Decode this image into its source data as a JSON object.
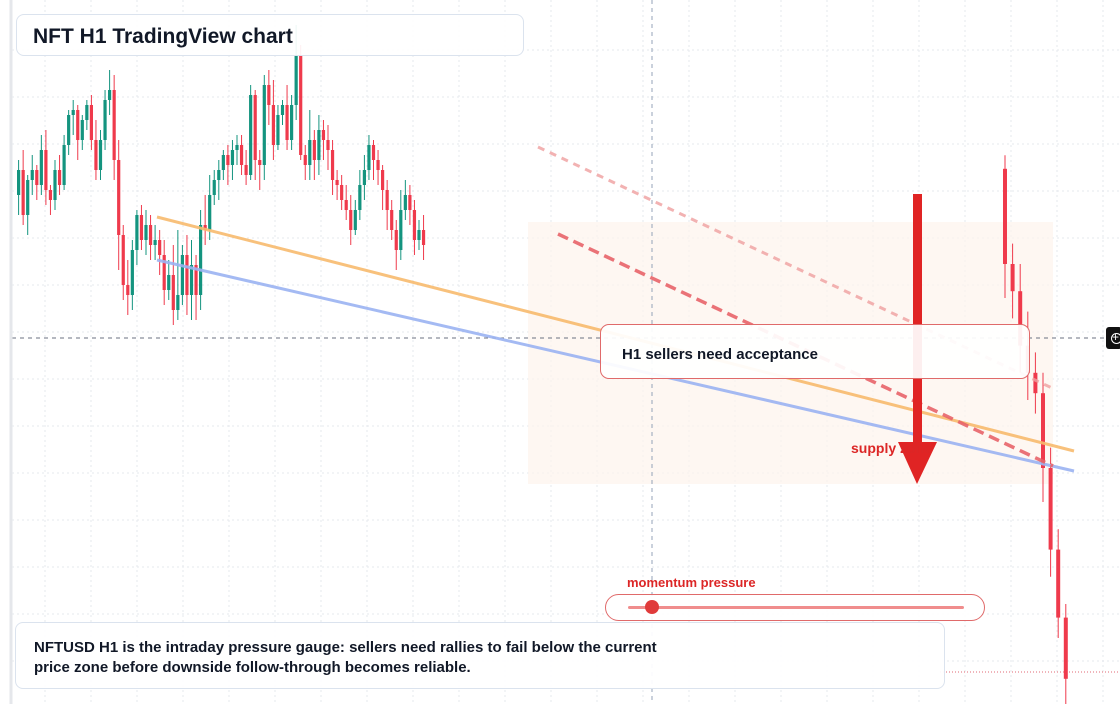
{
  "header": {
    "title": "NFT H1 TradingView chart"
  },
  "annotation": {
    "note": "H1 sellers need acceptance",
    "zone_label": "supply zone"
  },
  "gauge": {
    "label": "momentum pressure",
    "level": 0.07
  },
  "caption": "NFTUSD H1 is the intraday pressure gauge: sellers need rallies to fail below the current price zone before downside follow-through becomes reliable.",
  "colors": {
    "bull": "#14947f",
    "bear": "#ef3a4c",
    "accent": "#dc2626",
    "trend_orange": "#f8bb6e",
    "trend_blue": "#9bb3f2"
  },
  "chart_data": {
    "type": "candlestick",
    "timeframe": "H1",
    "symbol": "NFTUSD",
    "y_direction": "price rises upward; values in relative units 0-100",
    "candles": [
      [
        55,
        60,
        51,
        62
      ],
      [
        60,
        51,
        49,
        64
      ],
      [
        51,
        58,
        47,
        59
      ],
      [
        58,
        60,
        55,
        63
      ],
      [
        60,
        57,
        54,
        61
      ],
      [
        57,
        64,
        55,
        67
      ],
      [
        64,
        56,
        53,
        68
      ],
      [
        56,
        54,
        51,
        57
      ],
      [
        54,
        60,
        52,
        62
      ],
      [
        60,
        57,
        55,
        63
      ],
      [
        57,
        65,
        56,
        67
      ],
      [
        65,
        71,
        63,
        72
      ],
      [
        71,
        72,
        67,
        74
      ],
      [
        72,
        66,
        62,
        73
      ],
      [
        66,
        70,
        64,
        71
      ],
      [
        70,
        73,
        68,
        74
      ],
      [
        73,
        66,
        64,
        75
      ],
      [
        66,
        60,
        58,
        70
      ],
      [
        60,
        66,
        58,
        68
      ],
      [
        66,
        74,
        64,
        76
      ],
      [
        74,
        76,
        71,
        80
      ],
      [
        76,
        62,
        58,
        79
      ],
      [
        62,
        47,
        40,
        66
      ],
      [
        47,
        37,
        34,
        49
      ],
      [
        37,
        35,
        31,
        42
      ],
      [
        35,
        44,
        32,
        46
      ],
      [
        44,
        51,
        41,
        52
      ],
      [
        51,
        46,
        44,
        53
      ],
      [
        46,
        49,
        43,
        52
      ],
      [
        49,
        45,
        42,
        51
      ],
      [
        45,
        46,
        42,
        49
      ],
      [
        46,
        43,
        39,
        48
      ],
      [
        43,
        36,
        33,
        46
      ],
      [
        36,
        39,
        34,
        42
      ],
      [
        39,
        32,
        29,
        45
      ],
      [
        32,
        35,
        30,
        48
      ],
      [
        35,
        43,
        33,
        45
      ],
      [
        43,
        35,
        31,
        47
      ],
      [
        35,
        41,
        30,
        46
      ],
      [
        41,
        35,
        30,
        43
      ],
      [
        35,
        49,
        32,
        52
      ],
      [
        49,
        48,
        45,
        55
      ],
      [
        48,
        55,
        46,
        59
      ],
      [
        55,
        58,
        53,
        60
      ],
      [
        58,
        60,
        54,
        62
      ],
      [
        60,
        63,
        58,
        64
      ],
      [
        63,
        61,
        57,
        65
      ],
      [
        61,
        64,
        58,
        66
      ],
      [
        64,
        65,
        61,
        67
      ],
      [
        65,
        61,
        59,
        67
      ],
      [
        61,
        59,
        57,
        64
      ],
      [
        59,
        75,
        58,
        77
      ],
      [
        75,
        62,
        58,
        76
      ],
      [
        62,
        61,
        56,
        64
      ],
      [
        61,
        77,
        58,
        79
      ],
      [
        77,
        73,
        69,
        80
      ],
      [
        73,
        65,
        62,
        78
      ],
      [
        65,
        71,
        64,
        73
      ],
      [
        71,
        73,
        69,
        74
      ],
      [
        73,
        66,
        64,
        77
      ],
      [
        66,
        73,
        64,
        75
      ],
      [
        73,
        83,
        70,
        89
      ],
      [
        83,
        63,
        62,
        85
      ],
      [
        63,
        61,
        58,
        65
      ],
      [
        61,
        66,
        58,
        72
      ],
      [
        66,
        62,
        58,
        68
      ],
      [
        62,
        68,
        59,
        71
      ],
      [
        68,
        66,
        62,
        70
      ],
      [
        66,
        64,
        60,
        69
      ],
      [
        64,
        58,
        55,
        66
      ],
      [
        58,
        57,
        54,
        60
      ],
      [
        57,
        54,
        52,
        59
      ],
      [
        54,
        52,
        50,
        57
      ],
      [
        52,
        48,
        45,
        55
      ],
      [
        48,
        52,
        47,
        54
      ],
      [
        52,
        57,
        50,
        60
      ],
      [
        57,
        60,
        54,
        63
      ],
      [
        60,
        65,
        58,
        67
      ],
      [
        65,
        62,
        58,
        66
      ],
      [
        62,
        60,
        57,
        64
      ],
      [
        60,
        56,
        52,
        61
      ],
      [
        56,
        52,
        48,
        58
      ],
      [
        52,
        48,
        46,
        54
      ],
      [
        48,
        44,
        40,
        50
      ],
      [
        44,
        52,
        42,
        56
      ],
      [
        52,
        55,
        50,
        58
      ],
      [
        55,
        52,
        49,
        57
      ],
      [
        52,
        46,
        43,
        54
      ],
      [
        46,
        48,
        44,
        50
      ],
      [
        48,
        45,
        42,
        51
      ]
    ]
  }
}
